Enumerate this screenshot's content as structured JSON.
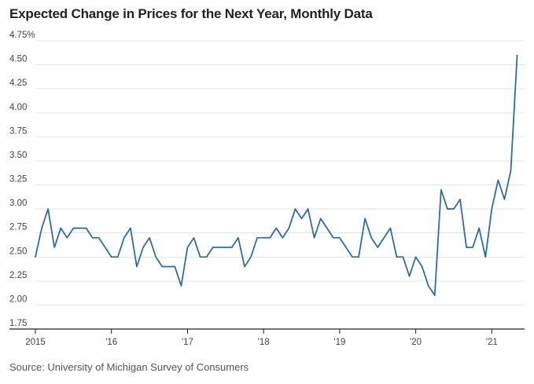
{
  "chart_data": {
    "type": "line",
    "title": "Expected Change in Prices for the Next Year, Monthly Data",
    "source": "Source: University of Michigan Survey of Consumers",
    "x_tick_labels": [
      "2015",
      "'16",
      "'17",
      "'18",
      "'19",
      "'20",
      "'21"
    ],
    "y_tick_labels": [
      "1.75",
      "2.00",
      "2.25",
      "2.50",
      "2.75",
      "3.00",
      "3.25",
      "3.50",
      "3.75",
      "4.00",
      "4.25",
      "4.50",
      "4.75%"
    ],
    "y_ticks": [
      1.75,
      2.0,
      2.25,
      2.5,
      2.75,
      3.0,
      3.25,
      3.5,
      3.75,
      4.0,
      4.25,
      4.5,
      4.75
    ],
    "ylim": [
      1.75,
      4.75
    ],
    "x_start": "2015-01",
    "grid": true,
    "line_color": "#2f6e9a",
    "series": [
      {
        "values": [
          2.5,
          2.8,
          3.0,
          2.6,
          2.8,
          2.7,
          2.8,
          2.8,
          2.8,
          2.7,
          2.7,
          2.6,
          2.5,
          2.5,
          2.7,
          2.8,
          2.4,
          2.6,
          2.7,
          2.5,
          2.4,
          2.4,
          2.4,
          2.2,
          2.6,
          2.7,
          2.5,
          2.5,
          2.6,
          2.6,
          2.6,
          2.6,
          2.7,
          2.4,
          2.5,
          2.7,
          2.7,
          2.7,
          2.8,
          2.7,
          2.8,
          3.0,
          2.9,
          3.0,
          2.7,
          2.9,
          2.8,
          2.7,
          2.7,
          2.6,
          2.5,
          2.5,
          2.9,
          2.7,
          2.6,
          2.7,
          2.8,
          2.5,
          2.5,
          2.3,
          2.5,
          2.4,
          2.2,
          2.1,
          3.2,
          3.0,
          3.0,
          3.1,
          2.6,
          2.6,
          2.8,
          2.5,
          3.0,
          3.3,
          3.1,
          3.4,
          4.6
        ]
      }
    ]
  }
}
